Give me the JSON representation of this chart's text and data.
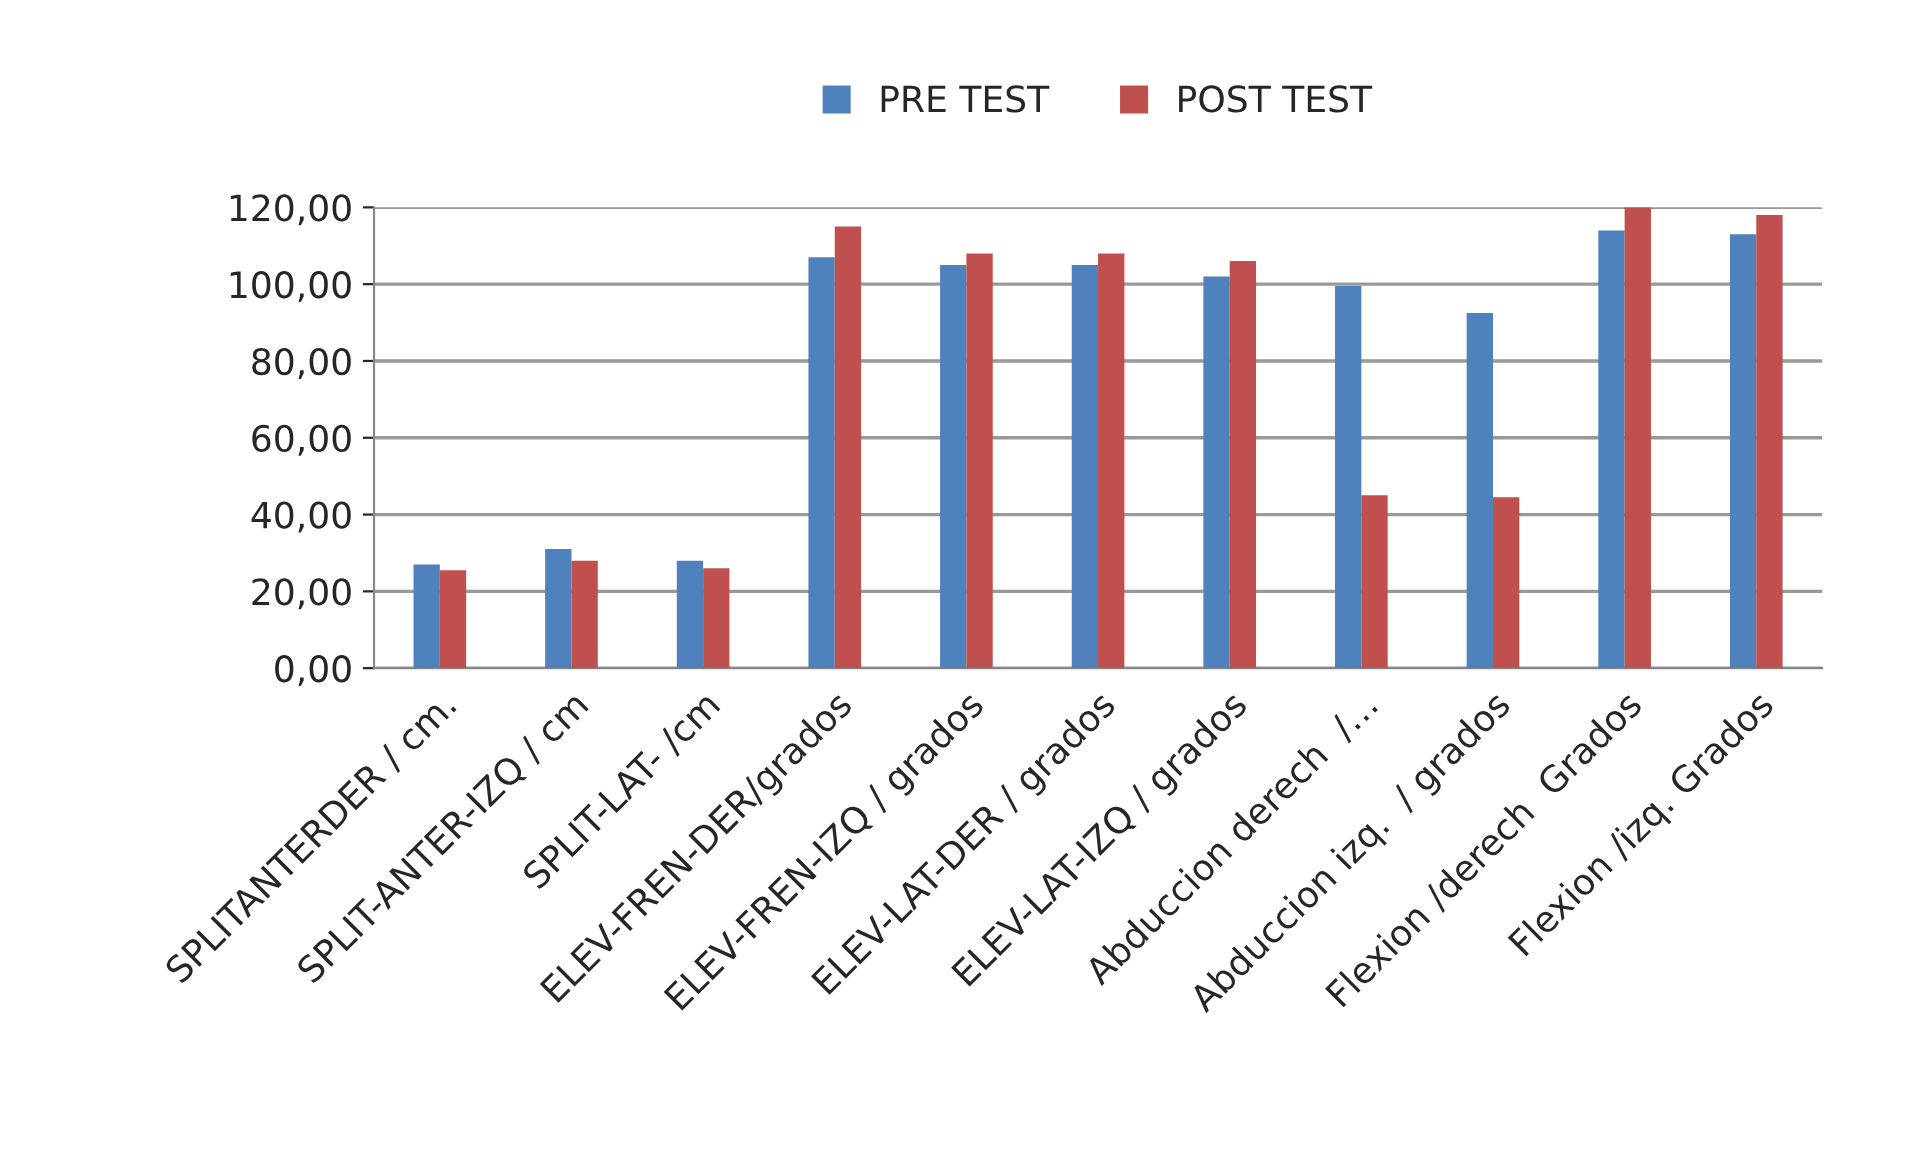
{
  "chart_data": {
    "type": "bar",
    "categories": [
      "SPLITANTERDER / cm.",
      "SPLIT-ANTER-IZQ / cm",
      "SPLIT-LAT- /cm",
      "ELEV-FREN-DER/grados",
      "ELEV-FREN-IZQ / grados",
      "ELEV-LAT-DER / grados",
      "ELEV-LAT-IZQ / grados",
      "Abduccion derech  /…",
      "Abduccion izq.  / grados",
      "Flexion /derech  Grados",
      "Flexion /izq. Grados"
    ],
    "series": [
      {
        "name": "PRE TEST",
        "color": "#4f81bd",
        "values": [
          27,
          31,
          28,
          107,
          105,
          105,
          102,
          99.5,
          92.5,
          114,
          113
        ]
      },
      {
        "name": "POST TEST",
        "color": "#c0504d",
        "values": [
          25.5,
          28,
          26,
          115,
          108,
          108,
          106,
          45,
          44.5,
          120,
          118
        ]
      }
    ],
    "ylim": [
      0,
      120
    ],
    "yticks": [
      {
        "value": 0,
        "label": "0,00"
      },
      {
        "value": 20,
        "label": "20,00"
      },
      {
        "value": 40,
        "label": "40,00"
      },
      {
        "value": 60,
        "label": "60,00"
      },
      {
        "value": 80,
        "label": "80,00"
      },
      {
        "value": 100,
        "label": "100,00"
      },
      {
        "value": 120,
        "label": "120,00"
      }
    ],
    "grid": "y",
    "legend": "top"
  }
}
